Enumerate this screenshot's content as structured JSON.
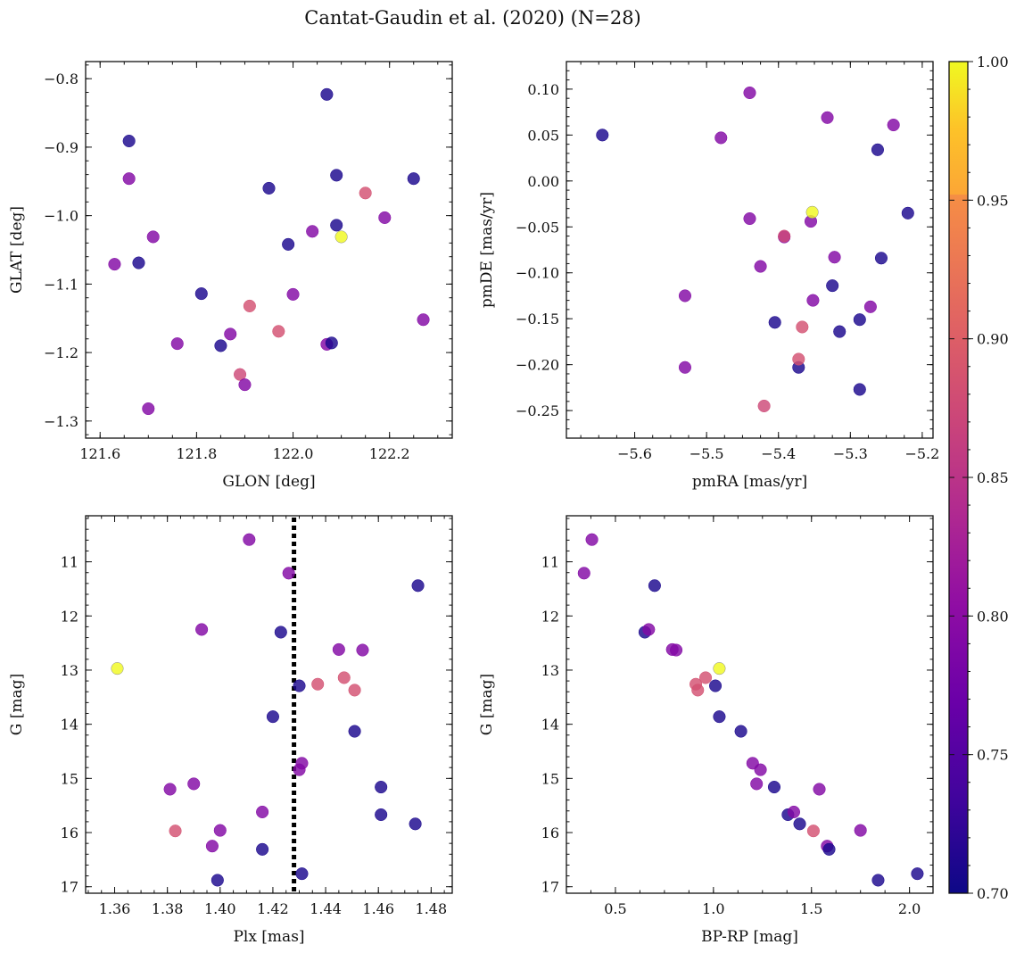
{
  "figure": {
    "title": "Cantat-Gaudin et al. (2020) (N=28)",
    "colorbar": {
      "min": 0.7,
      "max": 1.0,
      "ticks": [
        "0.70",
        "0.75",
        "0.80",
        "0.85",
        "0.90",
        "0.95",
        "1.00"
      ],
      "colormap": "plasma"
    }
  },
  "chart_data": [
    {
      "type": "scatter",
      "name": "sky",
      "xlabel": "GLON [deg]",
      "ylabel": "GLAT [deg]",
      "xlim": [
        121.57,
        122.33
      ],
      "ylim": [
        -1.325,
        -0.775
      ],
      "xticks": [
        "121.6",
        "121.8",
        "122.0",
        "122.2"
      ],
      "yticks": [
        "−0.8",
        "−0.9",
        "−1.0",
        "−1.1",
        "−1.2",
        "−1.3"
      ],
      "y_inverted": false,
      "points": [
        {
          "x": 121.66,
          "y": -0.891,
          "c": 0.71
        },
        {
          "x": 121.66,
          "y": -0.946,
          "c": 0.8
        },
        {
          "x": 121.71,
          "y": -1.031,
          "c": 0.8
        },
        {
          "x": 121.63,
          "y": -1.071,
          "c": 0.8
        },
        {
          "x": 121.68,
          "y": -1.069,
          "c": 0.71
        },
        {
          "x": 121.7,
          "y": -1.282,
          "c": 0.8
        },
        {
          "x": 121.76,
          "y": -1.187,
          "c": 0.8
        },
        {
          "x": 121.81,
          "y": -1.114,
          "c": 0.71
        },
        {
          "x": 121.85,
          "y": -1.19,
          "c": 0.71
        },
        {
          "x": 121.87,
          "y": -1.173,
          "c": 0.8
        },
        {
          "x": 121.89,
          "y": -1.232,
          "c": 0.89
        },
        {
          "x": 121.9,
          "y": -1.247,
          "c": 0.8
        },
        {
          "x": 121.91,
          "y": -1.132,
          "c": 0.9
        },
        {
          "x": 121.95,
          "y": -0.96,
          "c": 0.71
        },
        {
          "x": 121.97,
          "y": -1.169,
          "c": 0.9
        },
        {
          "x": 121.99,
          "y": -1.042,
          "c": 0.71
        },
        {
          "x": 122.0,
          "y": -1.115,
          "c": 0.8
        },
        {
          "x": 122.04,
          "y": -1.023,
          "c": 0.8
        },
        {
          "x": 122.07,
          "y": -0.823,
          "c": 0.71
        },
        {
          "x": 122.07,
          "y": -1.188,
          "c": 0.8
        },
        {
          "x": 122.08,
          "y": -1.186,
          "c": 0.71
        },
        {
          "x": 122.09,
          "y": -0.941,
          "c": 0.71
        },
        {
          "x": 122.09,
          "y": -1.014,
          "c": 0.71
        },
        {
          "x": 122.1,
          "y": -1.031,
          "c": 1.0
        },
        {
          "x": 122.15,
          "y": -0.967,
          "c": 0.9
        },
        {
          "x": 122.19,
          "y": -1.003,
          "c": 0.8
        },
        {
          "x": 122.25,
          "y": -0.946,
          "c": 0.71
        },
        {
          "x": 122.27,
          "y": -1.152,
          "c": 0.8
        }
      ]
    },
    {
      "type": "scatter",
      "name": "proper-motion",
      "xlabel": "pmRA [mas/yr]",
      "ylabel": "pmDE [mas/yr]",
      "xlim": [
        -5.695,
        -5.185
      ],
      "ylim": [
        -0.28,
        0.13
      ],
      "xticks": [
        "−5.6",
        "−5.5",
        "−5.4",
        "−5.3",
        "−5.2"
      ],
      "yticks": [
        "0.10",
        "0.05",
        "0.00",
        "−0.05",
        "−0.10",
        "−0.15",
        "−0.20",
        "−0.25"
      ],
      "y_inverted": false,
      "points": [
        {
          "x": -5.645,
          "y": 0.05,
          "c": 0.71
        },
        {
          "x": -5.53,
          "y": -0.125,
          "c": 0.8
        },
        {
          "x": -5.53,
          "y": -0.203,
          "c": 0.8
        },
        {
          "x": -5.48,
          "y": 0.047,
          "c": 0.8
        },
        {
          "x": -5.44,
          "y": 0.096,
          "c": 0.8
        },
        {
          "x": -5.44,
          "y": -0.041,
          "c": 0.8
        },
        {
          "x": -5.425,
          "y": -0.093,
          "c": 0.8
        },
        {
          "x": -5.42,
          "y": -0.245,
          "c": 0.89
        },
        {
          "x": -5.405,
          "y": -0.154,
          "c": 0.71
        },
        {
          "x": -5.392,
          "y": -0.061,
          "c": 0.8
        },
        {
          "x": -5.392,
          "y": -0.06,
          "c": 0.89
        },
        {
          "x": -5.372,
          "y": -0.203,
          "c": 0.71
        },
        {
          "x": -5.372,
          "y": -0.194,
          "c": 0.9
        },
        {
          "x": -5.367,
          "y": -0.159,
          "c": 0.9
        },
        {
          "x": -5.355,
          "y": -0.044,
          "c": 0.8
        },
        {
          "x": -5.353,
          "y": -0.034,
          "c": 1.0
        },
        {
          "x": -5.352,
          "y": -0.13,
          "c": 0.8
        },
        {
          "x": -5.332,
          "y": 0.069,
          "c": 0.8
        },
        {
          "x": -5.325,
          "y": -0.114,
          "c": 0.71
        },
        {
          "x": -5.322,
          "y": -0.083,
          "c": 0.8
        },
        {
          "x": -5.315,
          "y": -0.164,
          "c": 0.71
        },
        {
          "x": -5.287,
          "y": -0.151,
          "c": 0.71
        },
        {
          "x": -5.287,
          "y": -0.227,
          "c": 0.71
        },
        {
          "x": -5.272,
          "y": -0.137,
          "c": 0.8
        },
        {
          "x": -5.262,
          "y": 0.034,
          "c": 0.71
        },
        {
          "x": -5.257,
          "y": -0.084,
          "c": 0.71
        },
        {
          "x": -5.24,
          "y": 0.061,
          "c": 0.8
        },
        {
          "x": -5.22,
          "y": -0.035,
          "c": 0.71
        }
      ]
    },
    {
      "type": "scatter",
      "name": "parallax-magnitude",
      "xlabel": "Plx [mas]",
      "ylabel": "G [mag]",
      "xlim": [
        1.349,
        1.488
      ],
      "ylim": [
        10.15,
        17.12
      ],
      "xticks": [
        "1.36",
        "1.38",
        "1.40",
        "1.42",
        "1.44",
        "1.46",
        "1.48"
      ],
      "yticks": [
        "11",
        "12",
        "13",
        "14",
        "15",
        "16",
        "17"
      ],
      "y_inverted": true,
      "vline": {
        "x": 1.428,
        "style": "dotted"
      },
      "points": [
        {
          "x": 1.361,
          "y": 12.97,
          "c": 1.0
        },
        {
          "x": 1.381,
          "y": 15.2,
          "c": 0.8
        },
        {
          "x": 1.383,
          "y": 15.97,
          "c": 0.9
        },
        {
          "x": 1.39,
          "y": 15.1,
          "c": 0.8
        },
        {
          "x": 1.393,
          "y": 12.25,
          "c": 0.8
        },
        {
          "x": 1.397,
          "y": 16.25,
          "c": 0.8
        },
        {
          "x": 1.399,
          "y": 16.88,
          "c": 0.71
        },
        {
          "x": 1.4,
          "y": 15.96,
          "c": 0.8
        },
        {
          "x": 1.411,
          "y": 10.59,
          "c": 0.8
        },
        {
          "x": 1.416,
          "y": 16.31,
          "c": 0.71
        },
        {
          "x": 1.416,
          "y": 15.62,
          "c": 0.8
        },
        {
          "x": 1.42,
          "y": 13.86,
          "c": 0.71
        },
        {
          "x": 1.423,
          "y": 12.3,
          "c": 0.71
        },
        {
          "x": 1.426,
          "y": 11.21,
          "c": 0.8
        },
        {
          "x": 1.43,
          "y": 13.29,
          "c": 0.71
        },
        {
          "x": 1.43,
          "y": 14.84,
          "c": 0.8
        },
        {
          "x": 1.431,
          "y": 14.72,
          "c": 0.8
        },
        {
          "x": 1.431,
          "y": 16.76,
          "c": 0.71
        },
        {
          "x": 1.437,
          "y": 13.26,
          "c": 0.9
        },
        {
          "x": 1.445,
          "y": 12.62,
          "c": 0.8
        },
        {
          "x": 1.447,
          "y": 13.14,
          "c": 0.9
        },
        {
          "x": 1.451,
          "y": 14.13,
          "c": 0.71
        },
        {
          "x": 1.451,
          "y": 13.37,
          "c": 0.9
        },
        {
          "x": 1.454,
          "y": 12.63,
          "c": 0.8
        },
        {
          "x": 1.461,
          "y": 15.16,
          "c": 0.71
        },
        {
          "x": 1.461,
          "y": 15.67,
          "c": 0.71
        },
        {
          "x": 1.474,
          "y": 15.84,
          "c": 0.71
        },
        {
          "x": 1.475,
          "y": 11.44,
          "c": 0.71
        }
      ]
    },
    {
      "type": "scatter",
      "name": "color-magnitude",
      "xlabel": "BP-RP [mag]",
      "ylabel": "G [mag]",
      "xlim": [
        0.25,
        2.12
      ],
      "ylim": [
        10.15,
        17.12
      ],
      "xticks": [
        "0.5",
        "1.0",
        "1.5",
        "2.0"
      ],
      "yticks": [
        "11",
        "12",
        "13",
        "14",
        "15",
        "16",
        "17"
      ],
      "y_inverted": true,
      "points": [
        {
          "x": 0.34,
          "y": 11.21,
          "c": 0.8
        },
        {
          "x": 0.38,
          "y": 10.59,
          "c": 0.8
        },
        {
          "x": 0.65,
          "y": 12.3,
          "c": 0.71
        },
        {
          "x": 0.67,
          "y": 12.25,
          "c": 0.8
        },
        {
          "x": 0.7,
          "y": 11.44,
          "c": 0.71
        },
        {
          "x": 0.79,
          "y": 12.62,
          "c": 0.8
        },
        {
          "x": 0.81,
          "y": 12.63,
          "c": 0.8
        },
        {
          "x": 0.91,
          "y": 13.26,
          "c": 0.9
        },
        {
          "x": 0.92,
          "y": 13.37,
          "c": 0.9
        },
        {
          "x": 0.96,
          "y": 13.14,
          "c": 0.9
        },
        {
          "x": 1.01,
          "y": 13.29,
          "c": 0.71
        },
        {
          "x": 1.03,
          "y": 12.97,
          "c": 1.0
        },
        {
          "x": 1.03,
          "y": 13.86,
          "c": 0.71
        },
        {
          "x": 1.14,
          "y": 14.13,
          "c": 0.71
        },
        {
          "x": 1.2,
          "y": 14.72,
          "c": 0.8
        },
        {
          "x": 1.22,
          "y": 15.1,
          "c": 0.8
        },
        {
          "x": 1.24,
          "y": 14.84,
          "c": 0.8
        },
        {
          "x": 1.31,
          "y": 15.16,
          "c": 0.71
        },
        {
          "x": 1.38,
          "y": 15.67,
          "c": 0.71
        },
        {
          "x": 1.41,
          "y": 15.62,
          "c": 0.8
        },
        {
          "x": 1.44,
          "y": 15.84,
          "c": 0.71
        },
        {
          "x": 1.51,
          "y": 15.97,
          "c": 0.9
        },
        {
          "x": 1.54,
          "y": 15.2,
          "c": 0.8
        },
        {
          "x": 1.58,
          "y": 16.25,
          "c": 0.8
        },
        {
          "x": 1.59,
          "y": 16.31,
          "c": 0.71
        },
        {
          "x": 1.75,
          "y": 15.96,
          "c": 0.8
        },
        {
          "x": 1.84,
          "y": 16.88,
          "c": 0.71
        },
        {
          "x": 2.04,
          "y": 16.76,
          "c": 0.71
        }
      ]
    }
  ]
}
